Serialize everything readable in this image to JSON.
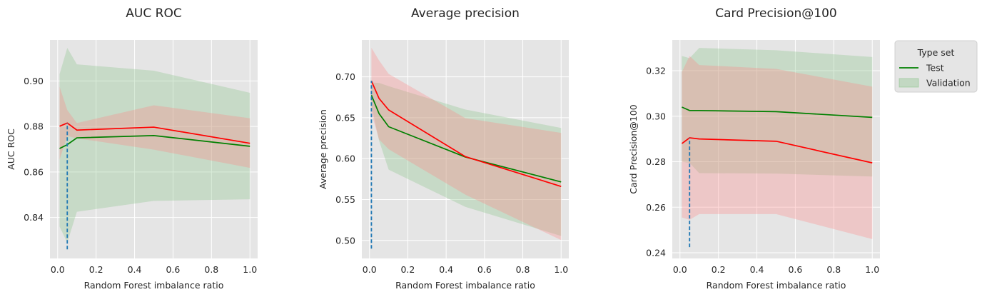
{
  "chart_data": [
    {
      "type": "line",
      "title": "AUC ROC",
      "xlabel": "Random Forest imbalance ratio",
      "ylabel": "AUC ROC",
      "xlim": [
        -0.04,
        1.04
      ],
      "ylim": [
        0.822,
        0.918
      ],
      "xticks": [
        0.0,
        0.2,
        0.4,
        0.6,
        0.8,
        1.0
      ],
      "xtick_labels": [
        "0.0",
        "0.2",
        "0.4",
        "0.6",
        "0.8",
        "1.0"
      ],
      "yticks": [
        0.84,
        0.86,
        0.88,
        0.9
      ],
      "ytick_labels": [
        "0.84",
        "0.86",
        "0.88",
        "0.90"
      ],
      "grid": true,
      "x": [
        0.01,
        0.05,
        0.1,
        0.5,
        1.0
      ],
      "series": [
        {
          "name": "Test",
          "color": "#008000",
          "values": [
            0.8703,
            0.872,
            0.875,
            0.876,
            0.8713
          ],
          "band_lower": [
            0.836,
            0.829,
            0.8425,
            0.8473,
            0.848
          ],
          "band_upper": [
            0.903,
            0.9145,
            0.9073,
            0.9045,
            0.8948
          ],
          "band_color": "#80c080"
        },
        {
          "name": "Validation",
          "color": "#ff0000",
          "values": [
            0.8801,
            0.8815,
            0.8784,
            0.8797,
            0.8726
          ],
          "band_lower": [
            0.8655,
            0.8758,
            0.8748,
            0.8698,
            0.8618
          ],
          "band_upper": [
            0.8975,
            0.8872,
            0.8815,
            0.8893,
            0.8836
          ],
          "band_color": "#ff8080"
        }
      ],
      "vline": {
        "x": 0.05,
        "ymin": 0.826,
        "ymax": 0.8815,
        "color": "#1f77b4",
        "style": "dashed"
      }
    },
    {
      "type": "line",
      "title": "Average precision",
      "xlabel": "Random Forest imbalance ratio",
      "ylabel": "Average precision",
      "xlim": [
        -0.04,
        1.04
      ],
      "ylim": [
        0.478,
        0.745
      ],
      "xticks": [
        0.0,
        0.2,
        0.4,
        0.6,
        0.8,
        1.0
      ],
      "xtick_labels": [
        "0.0",
        "0.2",
        "0.4",
        "0.6",
        "0.8",
        "1.0"
      ],
      "yticks": [
        0.5,
        0.55,
        0.6,
        0.65,
        0.7
      ],
      "ytick_labels": [
        "0.50",
        "0.55",
        "0.60",
        "0.65",
        "0.70"
      ],
      "grid": true,
      "x": [
        0.01,
        0.05,
        0.1,
        0.5,
        1.0
      ],
      "series": [
        {
          "name": "Test",
          "color": "#008000",
          "values": [
            0.6775,
            0.655,
            0.639,
            0.602,
            0.5715
          ],
          "band_lower": [
            0.665,
            0.622,
            0.5865,
            0.541,
            0.5055
          ],
          "band_upper": [
            0.693,
            0.6925,
            0.6885,
            0.66,
            0.6375
          ],
          "band_color": "#80c080"
        },
        {
          "name": "Validation",
          "color": "#ff0000",
          "values": [
            0.695,
            0.6735,
            0.6595,
            0.6025,
            0.566
          ],
          "band_lower": [
            0.6555,
            0.6235,
            0.6115,
            0.556,
            0.5005
          ],
          "band_upper": [
            0.7355,
            0.72,
            0.7035,
            0.6495,
            0.6315
          ],
          "band_color": "#ff8080"
        }
      ],
      "vline": {
        "x": 0.01,
        "ymin": 0.49,
        "ymax": 0.695,
        "color": "#1f77b4",
        "style": "dashed"
      }
    },
    {
      "type": "line",
      "title": "Card Precision@100",
      "xlabel": "Random Forest imbalance ratio",
      "ylabel": "Card Precision@100",
      "xlim": [
        -0.04,
        1.04
      ],
      "ylim": [
        0.2375,
        0.3335
      ],
      "xticks": [
        0.0,
        0.2,
        0.4,
        0.6,
        0.8,
        1.0
      ],
      "xtick_labels": [
        "0.0",
        "0.2",
        "0.4",
        "0.6",
        "0.8",
        "1.0"
      ],
      "yticks": [
        0.24,
        0.26,
        0.28,
        0.3,
        0.32
      ],
      "ytick_labels": [
        "0.24",
        "0.26",
        "0.28",
        "0.30",
        "0.32"
      ],
      "grid": true,
      "x": [
        0.01,
        0.05,
        0.1,
        0.5,
        1.0
      ],
      "series": [
        {
          "name": "Test",
          "color": "#008000",
          "values": [
            0.304,
            0.3025,
            0.3025,
            0.302,
            0.2995
          ],
          "band_lower": [
            0.28,
            0.2795,
            0.275,
            0.2748,
            0.2735
          ],
          "band_upper": [
            0.3265,
            0.3255,
            0.33,
            0.329,
            0.326
          ],
          "band_color": "#80c080"
        },
        {
          "name": "Validation",
          "color": "#ff0000",
          "values": [
            0.288,
            0.2905,
            0.29,
            0.289,
            0.2795
          ],
          "band_lower": [
            0.2555,
            0.2545,
            0.257,
            0.257,
            0.246
          ],
          "band_upper": [
            0.3195,
            0.3265,
            0.3225,
            0.3208,
            0.313
          ],
          "band_color": "#ff8080"
        }
      ],
      "vline": {
        "x": 0.05,
        "ymin": 0.2425,
        "ymax": 0.2905,
        "color": "#1f77b4",
        "style": "dashed"
      }
    }
  ],
  "legend": {
    "title": "Type set",
    "placement": "outside-right",
    "entries": [
      {
        "label": "Test",
        "kind": "line",
        "color": "#008000"
      },
      {
        "label": "Validation",
        "kind": "patch",
        "color": "#80c080"
      }
    ]
  }
}
